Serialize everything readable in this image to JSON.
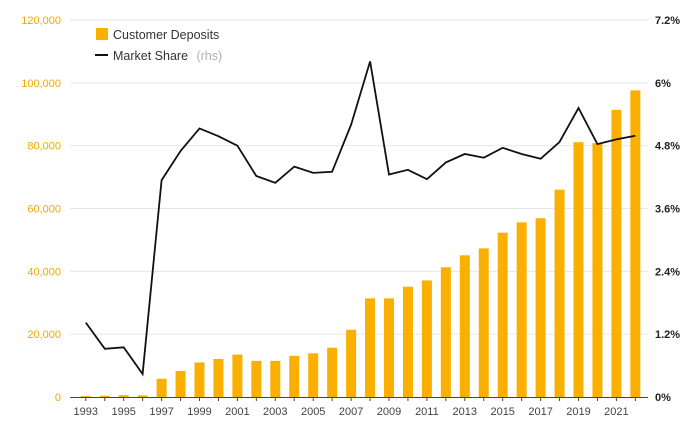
{
  "colors": {
    "bar": "#f9b000",
    "line": "#111111",
    "left_axis": "#f0a800",
    "right_axis": "#222222",
    "grid": "#e6e6e6",
    "x_axis": "#444444"
  },
  "legend": {
    "deposits_label": "Customer Deposits",
    "share_label": "Market Share",
    "share_note": "(rhs)"
  },
  "chart_data": {
    "type": "bar",
    "title": "",
    "xlabel": "",
    "ylabel": "",
    "categories": [
      "1993",
      "1994",
      "1995",
      "1996",
      "1997",
      "1998",
      "1999",
      "2000",
      "2001",
      "2002",
      "2003",
      "2004",
      "2005",
      "2006",
      "2007",
      "2008",
      "2009",
      "2010",
      "2011",
      "2012",
      "2013",
      "2014",
      "2015",
      "2016",
      "2017",
      "2018",
      "2019",
      "2020",
      "2021",
      "2022"
    ],
    "x_tick_labels": [
      "1993",
      "1995",
      "1997",
      "1999",
      "2001",
      "2003",
      "2005",
      "2007",
      "2009",
      "2011",
      "2013",
      "2015",
      "2017",
      "2019",
      "2021"
    ],
    "ylim": [
      0,
      120000
    ],
    "y_ticks": [
      "0",
      "20,000",
      "40,000",
      "60,000",
      "80,000",
      "100,000",
      "120,000"
    ],
    "y2lim": [
      0,
      7.2
    ],
    "y2_ticks": [
      "0%",
      "1.2%",
      "2.4%",
      "3.6%",
      "4.8%",
      "6%",
      "7.2%"
    ],
    "series": [
      {
        "name": "Customer Deposits",
        "type": "bar",
        "axis": "left",
        "values": [
          300,
          400,
          600,
          500,
          5800,
          8300,
          11000,
          12100,
          13500,
          11500,
          11500,
          13100,
          13900,
          15700,
          21400,
          31400,
          31400,
          35100,
          37100,
          41300,
          45100,
          47300,
          52300,
          55600,
          56900,
          66000,
          81100,
          80800,
          91400,
          97600
        ]
      },
      {
        "name": "Market Share",
        "type": "line",
        "axis": "right",
        "values": [
          1.42,
          0.92,
          0.95,
          0.44,
          4.14,
          4.7,
          5.13,
          4.98,
          4.8,
          4.22,
          4.09,
          4.4,
          4.28,
          4.3,
          5.2,
          6.41,
          4.25,
          4.34,
          4.16,
          4.48,
          4.64,
          4.57,
          4.76,
          4.64,
          4.55,
          4.87,
          5.52,
          4.83,
          4.92,
          4.99
        ]
      }
    ],
    "grid": true,
    "legend_position": "top-left"
  }
}
